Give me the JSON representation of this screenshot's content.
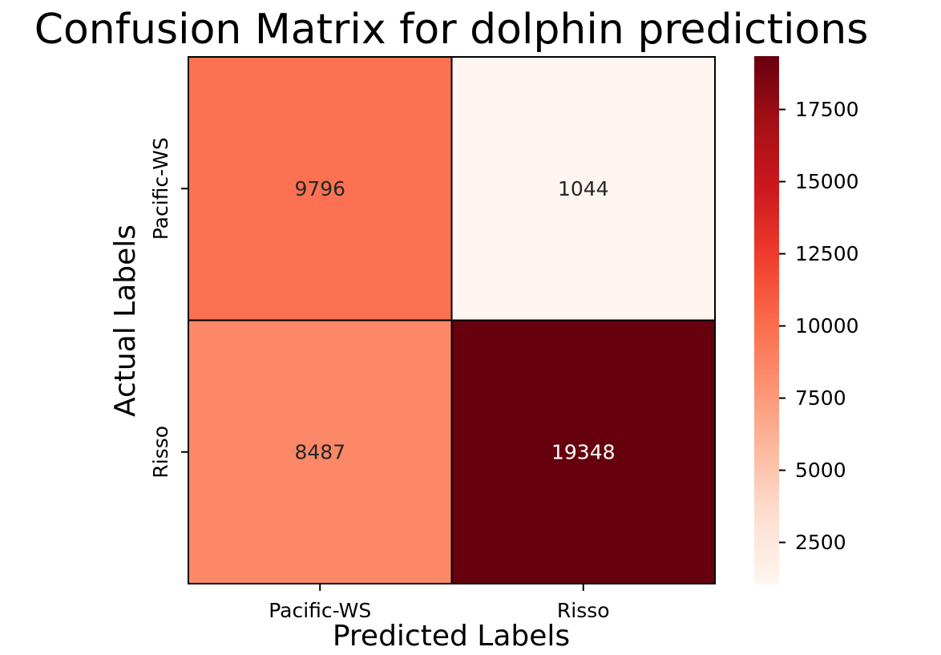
{
  "chart_data": {
    "type": "heatmap",
    "title": "Confusion Matrix for dolphin predictions",
    "xlabel": "Predicted Labels",
    "ylabel": "Actual Labels",
    "x_categories": [
      "Pacific-WS",
      "Risso"
    ],
    "y_categories": [
      "Pacific-WS",
      "Risso"
    ],
    "values": [
      [
        9796,
        1044
      ],
      [
        8487,
        19348
      ]
    ],
    "colormap": "Reds",
    "colorbar": {
      "min": 1044,
      "max": 19348,
      "ticks": [
        2500,
        5000,
        7500,
        10000,
        12500,
        15000,
        17500
      ]
    }
  }
}
